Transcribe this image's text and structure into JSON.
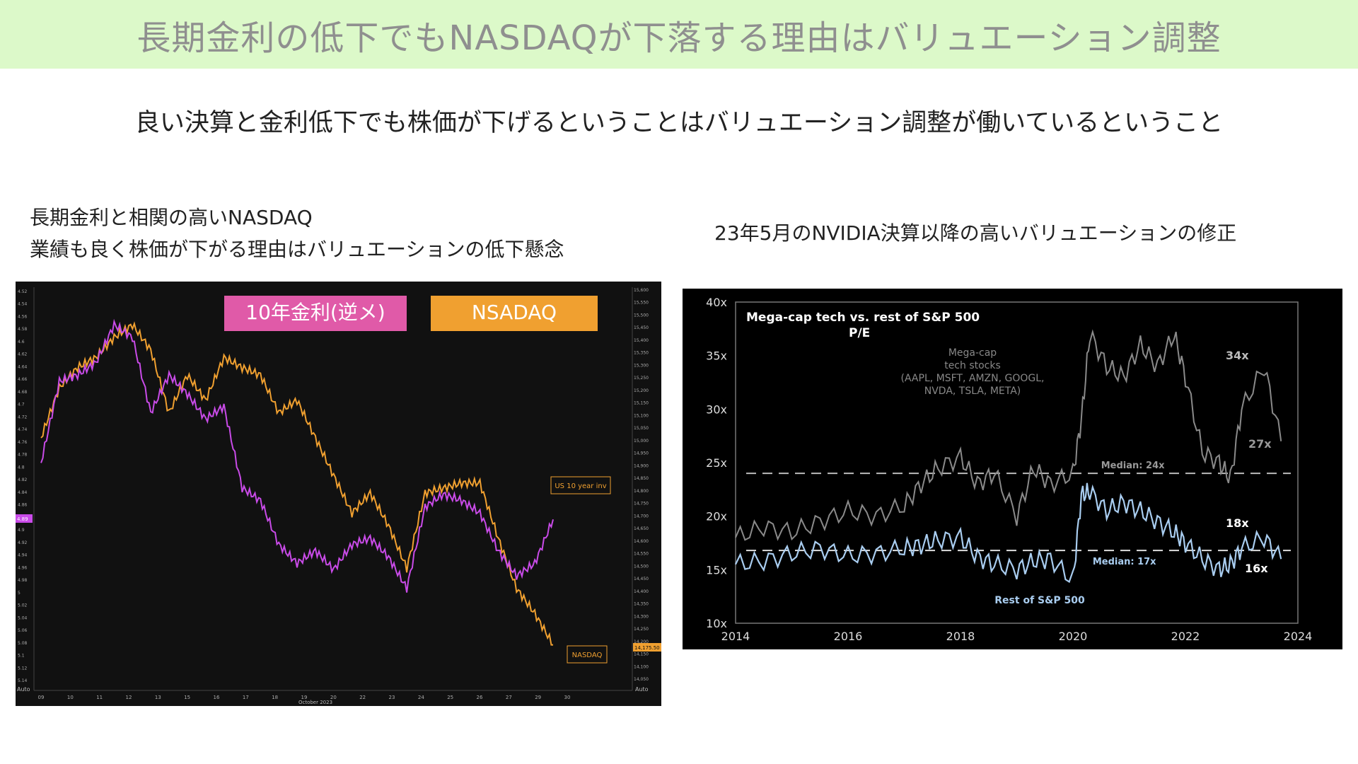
{
  "header": {
    "title": "長期金利の低下でもNASDAQが下落する理由はバリュエーション調整"
  },
  "subtitle": "良い決算と金利低下でも株価が下げるということはバリュエーション調整が働いているということ",
  "left_caption": {
    "line1": "長期金利と相関の高いNASDAQ",
    "line2": "業績も良く株価が下がる理由はバリュエーションの低下懸念"
  },
  "right_caption": "23年5月のNVIDIA決算以降の高いバリュエーションの修正",
  "colors": {
    "title_bg": "#dcf9c9",
    "rate": "#c94be8",
    "nasdaq": "#f0a030",
    "tech": "#8a8a8a",
    "rest": "#a9cdf0"
  },
  "chart_data": [
    {
      "type": "line",
      "legend_badges": [
        "10年金利(逆メ)",
        "NSADAQ"
      ],
      "series_tags": [
        "US 10 year inv",
        "NASDAQ"
      ],
      "x_ticks": [
        "09",
        "10",
        "11",
        "12",
        "13",
        "15",
        "16",
        "17",
        "18",
        "19",
        "20",
        "22",
        "23",
        "24",
        "25",
        "26",
        "27",
        "29",
        "30"
      ],
      "x_caption": "October 2023",
      "corner_labels": [
        "Auto",
        "Auto"
      ],
      "left_axis": {
        "ticks": [
          "4.52",
          "4.54",
          "4.56",
          "4.58",
          "4.6",
          "4.62",
          "4.64",
          "4.66",
          "4.68",
          "4.7",
          "4.72",
          "4.74",
          "4.76",
          "4.78",
          "4.8",
          "4.82",
          "4.84",
          "4.86",
          "4.88",
          "4.9",
          "4.92",
          "4.94",
          "4.96",
          "4.98",
          "5",
          "5.02",
          "5.04",
          "5.06",
          "5.08",
          "5.1",
          "5.12",
          "5.14"
        ],
        "inverted": true,
        "last_value": "4.89"
      },
      "right_axis": {
        "ticks": [
          "15,600",
          "15,550",
          "15,500",
          "15,450",
          "15,400",
          "15,350",
          "15,300",
          "15,250",
          "15,200",
          "15,150",
          "15,100",
          "15,050",
          "15,000",
          "14,950",
          "14,900",
          "14,850",
          "14,800",
          "14,750",
          "14,700",
          "14,650",
          "14,600",
          "14,550",
          "14,500",
          "14,450",
          "14,400",
          "14,350",
          "14,300",
          "14,250",
          "14,200",
          "14,150",
          "14,100",
          "14,050"
        ],
        "last_value": "14,175.50"
      },
      "series": [
        {
          "name": "NASDAQ",
          "axis": "right",
          "x": [
            0,
            1,
            2,
            3,
            4,
            5,
            6,
            7,
            8,
            9,
            10,
            11,
            12,
            13,
            14,
            15,
            16,
            17,
            18,
            19,
            20,
            21,
            22,
            23,
            24,
            25,
            26,
            27,
            28
          ],
          "values": [
            15000,
            15200,
            15280,
            15320,
            15400,
            15450,
            15350,
            15100,
            15250,
            15150,
            15320,
            15280,
            15250,
            15100,
            15150,
            15000,
            14850,
            14700,
            14780,
            14650,
            14480,
            14780,
            14800,
            14820,
            14820,
            14600,
            14400,
            14300,
            14175
          ]
        },
        {
          "name": "US 10 year inv",
          "axis": "left",
          "x": [
            0,
            1,
            2,
            3,
            4,
            5,
            6,
            7,
            8,
            9,
            10,
            11,
            12,
            13,
            14,
            15,
            16,
            17,
            18,
            19,
            20,
            21,
            22,
            23,
            24,
            25,
            26,
            27,
            28
          ],
          "values": [
            4.8,
            4.67,
            4.66,
            4.64,
            4.58,
            4.6,
            4.72,
            4.66,
            4.69,
            4.73,
            4.71,
            4.84,
            4.86,
            4.93,
            4.96,
            4.94,
            4.97,
            4.93,
            4.92,
            4.95,
            5.0,
            4.87,
            4.85,
            4.86,
            4.88,
            4.94,
            4.98,
            4.96,
            4.89
          ]
        }
      ]
    },
    {
      "type": "line",
      "title": "Mega-cap tech vs. rest of S&P 500",
      "subtitle": "P/E",
      "x_ticks": [
        "2014",
        "2016",
        "2018",
        "2020",
        "2022",
        "2024"
      ],
      "xlim": [
        2014,
        2024
      ],
      "y_ticks": [
        "10x",
        "15x",
        "20x",
        "25x",
        "30x",
        "35x",
        "40x"
      ],
      "ylim": [
        10,
        40
      ],
      "tech_label": [
        "Mega-cap",
        "tech stocks",
        "(AAPL, MSFT, AMZN, GOOGL,",
        "NVDA, TSLA, META)"
      ],
      "rest_label": "Rest of S&P 500",
      "medians": [
        {
          "label": "Median: 24x",
          "value": 24
        },
        {
          "label": "Median: 17x",
          "value": 16.8
        }
      ],
      "end_labels": {
        "tech_peak": "34x",
        "tech_last": "27x",
        "rest_peak": "18x",
        "rest_last": "16x"
      },
      "series": [
        {
          "name": "Mega-cap tech stocks",
          "x": [
            2014,
            2014.5,
            2015,
            2015.5,
            2016,
            2016.5,
            2017,
            2017.3,
            2017.6,
            2018,
            2018.3,
            2018.6,
            2019,
            2019.3,
            2019.6,
            2020,
            2020.15,
            2020.3,
            2020.6,
            2020.9,
            2021.2,
            2021.5,
            2021.8,
            2022,
            2022.3,
            2022.6,
            2022.8,
            2023,
            2023.4,
            2023.7
          ],
          "values": [
            18,
            19,
            18.5,
            19.5,
            20.5,
            20,
            21,
            23,
            24.5,
            25.5,
            23,
            24,
            20,
            24.5,
            23,
            24,
            29,
            37,
            34,
            33,
            36,
            34,
            37,
            33,
            26,
            25,
            23.5,
            30,
            34,
            27
          ]
        },
        {
          "name": "Rest of S&P 500",
          "x": [
            2014,
            2014.5,
            2015,
            2015.5,
            2016,
            2016.5,
            2017,
            2017.3,
            2017.6,
            2018,
            2018.3,
            2018.6,
            2019,
            2019.3,
            2019.6,
            2020,
            2020.15,
            2020.3,
            2020.6,
            2020.9,
            2021.2,
            2021.5,
            2021.8,
            2022,
            2022.3,
            2022.6,
            2022.8,
            2023,
            2023.4,
            2023.7
          ],
          "values": [
            15.5,
            15.8,
            16.5,
            17,
            16.3,
            16.5,
            17,
            17.3,
            17.8,
            18,
            16.2,
            15.5,
            15,
            15.8,
            16,
            14,
            22,
            22.3,
            20.5,
            21.3,
            20.5,
            19.5,
            18.5,
            17.5,
            16,
            15,
            15.5,
            17,
            18,
            16
          ]
        }
      ]
    }
  ]
}
